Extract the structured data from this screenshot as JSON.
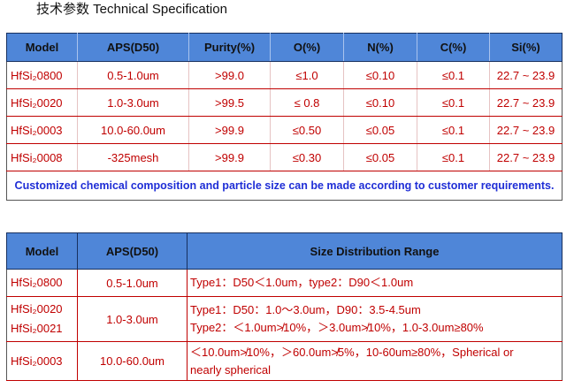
{
  "title": "技术参数 Technical Specification",
  "spec_table": {
    "headers": [
      "Model",
      "APS(D50)",
      "Purity(%)",
      "O(%)",
      "N(%)",
      "C(%)",
      "Si(%)"
    ],
    "rows": [
      [
        "HfSi₂0800",
        "0.5-1.0um",
        ">99.0",
        "≤1.0",
        "≤0.10",
        "≤0.1",
        "22.7 ~ 23.9"
      ],
      [
        "HfSi₂0020",
        "1.0-3.0um",
        ">99.5",
        "≤ 0.8",
        "≤0.10",
        "≤0.1",
        "22.7 ~ 23.9"
      ],
      [
        "HfSi₂0003",
        "10.0-60.0um",
        ">99.9",
        "≤0.50",
        "≤0.05",
        "≤0.1",
        "22.7 ~ 23.9"
      ],
      [
        "HfSi₂0008",
        "-325mesh",
        ">99.9",
        "≤0.30",
        "≤0.05",
        "≤0.1",
        "22.7 ~ 23.9"
      ]
    ],
    "note": "Customized chemical composition and particle size can be made according to customer requirements."
  },
  "size_table": {
    "headers": [
      "Model",
      "APS(D50)",
      "Size Distribution Range"
    ],
    "row1": {
      "model": "HfSi₂0800",
      "aps": "0.5-1.0um",
      "range": "Type1：D50＜1.0um，type2：D90＜1.0um"
    },
    "row2": {
      "model_a": "HfSi₂0020",
      "model_b": "HfSi₂0021",
      "aps": "1.0-3.0um",
      "range_a": "Type1：D50：1.0～3.0um，D90：3.5-4.5um",
      "range_b": "Type2：＜1.0um≯10%，＞3.0um≯10%，1.0-3.0um≥80%"
    },
    "row3": {
      "model": "HfSi₂0003",
      "aps": "10.0-60.0um",
      "range_a": "＜10.0um≯10%，＞60.0um≯5%，10-60um≥80%，Spherical or",
      "range_b": "nearly spherical"
    }
  }
}
